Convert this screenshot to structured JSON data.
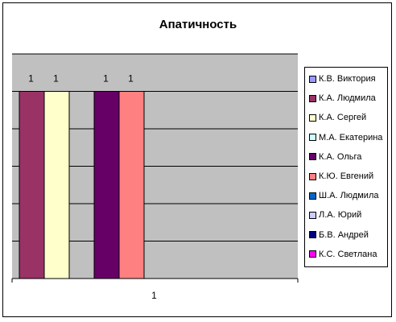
{
  "chart_data": {
    "type": "bar",
    "title": "Апатичность",
    "categories": [
      "1"
    ],
    "ylim": [
      0,
      1.2
    ],
    "grid": true,
    "legend_position": "right",
    "series": [
      {
        "name": "К.В. Виктория",
        "values": [
          0
        ],
        "color": "#9999ff",
        "label": ""
      },
      {
        "name": "К.А. Людмила",
        "values": [
          1
        ],
        "color": "#993366",
        "label": "1"
      },
      {
        "name": "К.А. Сергей",
        "values": [
          1
        ],
        "color": "#ffffcc",
        "label": "1"
      },
      {
        "name": "М.А. Екатерина",
        "values": [
          0
        ],
        "color": "#ccffff",
        "label": ""
      },
      {
        "name": "К.А. Ольга",
        "values": [
          1
        ],
        "color": "#660066",
        "label": "1"
      },
      {
        "name": "К.Ю. Евгений",
        "values": [
          1
        ],
        "color": "#ff8080",
        "label": "1"
      },
      {
        "name": "Ш.А. Людмила",
        "values": [
          0
        ],
        "color": "#0066cc",
        "label": ""
      },
      {
        "name": "Л.А. Юрий",
        "values": [
          0
        ],
        "color": "#ccccff",
        "label": ""
      },
      {
        "name": "Б.В. Андрей",
        "values": [
          0
        ],
        "color": "#000080",
        "label": ""
      },
      {
        "name": "К.С. Светлана",
        "values": [
          0
        ],
        "color": "#ff00ff",
        "label": ""
      }
    ],
    "plot_background": "#c0c0c0"
  }
}
